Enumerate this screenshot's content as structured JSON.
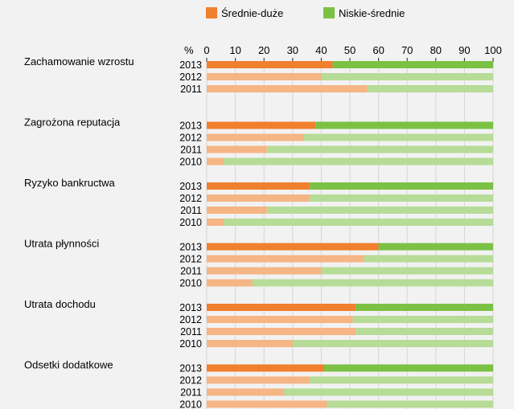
{
  "chart_data": {
    "type": "bar",
    "orientation": "horizontal",
    "stacked": true,
    "percent_symbol": "%",
    "xlim": [
      0,
      100
    ],
    "x_ticks": [
      "0",
      "10",
      "20",
      "30",
      "40",
      "50",
      "60",
      "70",
      "80",
      "90",
      "100"
    ],
    "legend": [
      {
        "name": "Średnie-duże",
        "color_2013": "#f07f2e",
        "color_other": "#f5b584"
      },
      {
        "name": "Niskie-średnie",
        "color_2013": "#7bc144",
        "color_other": "#b6dc97"
      }
    ],
    "legend_position": "top",
    "grid": true,
    "groups": [
      {
        "label": "Zachamowanie wzrostu",
        "bars": [
          {
            "year": "2013",
            "values": [
              44,
              56
            ]
          },
          {
            "year": "2012",
            "values": [
              40,
              60
            ]
          },
          {
            "year": "2011",
            "values": [
              56,
              44
            ]
          }
        ]
      },
      {
        "label": "Zagrożona reputacja",
        "bars": [
          {
            "year": "2013",
            "values": [
              38,
              62
            ]
          },
          {
            "year": "2012",
            "values": [
              34,
              66
            ]
          },
          {
            "year": "2011",
            "values": [
              21,
              79
            ]
          },
          {
            "year": "2010",
            "values": [
              6,
              94
            ]
          }
        ]
      },
      {
        "label": "Ryzyko bankructwa",
        "bars": [
          {
            "year": "2013",
            "values": [
              36,
              64
            ]
          },
          {
            "year": "2012",
            "values": [
              36,
              64
            ]
          },
          {
            "year": "2011",
            "values": [
              21,
              79
            ]
          },
          {
            "year": "2010",
            "values": [
              6,
              94
            ]
          }
        ]
      },
      {
        "label": "Utrata płynności",
        "bars": [
          {
            "year": "2013",
            "values": [
              60,
              40
            ]
          },
          {
            "year": "2012",
            "values": [
              55,
              45
            ]
          },
          {
            "year": "2011",
            "values": [
              40,
              60
            ]
          },
          {
            "year": "2010",
            "values": [
              16,
              84
            ]
          }
        ]
      },
      {
        "label": "Utrata dochodu",
        "bars": [
          {
            "year": "2013",
            "values": [
              52,
              48
            ]
          },
          {
            "year": "2012",
            "values": [
              51,
              49
            ]
          },
          {
            "year": "2011",
            "values": [
              52,
              48
            ]
          },
          {
            "year": "2010",
            "values": [
              30,
              70
            ]
          }
        ]
      },
      {
        "label": "Odsetki dodatkowe",
        "bars": [
          {
            "year": "2013",
            "values": [
              41,
              59
            ]
          },
          {
            "year": "2012",
            "values": [
              36,
              64
            ]
          },
          {
            "year": "2011",
            "values": [
              27,
              73
            ]
          },
          {
            "year": "2010",
            "values": [
              42,
              58
            ]
          }
        ]
      }
    ]
  }
}
